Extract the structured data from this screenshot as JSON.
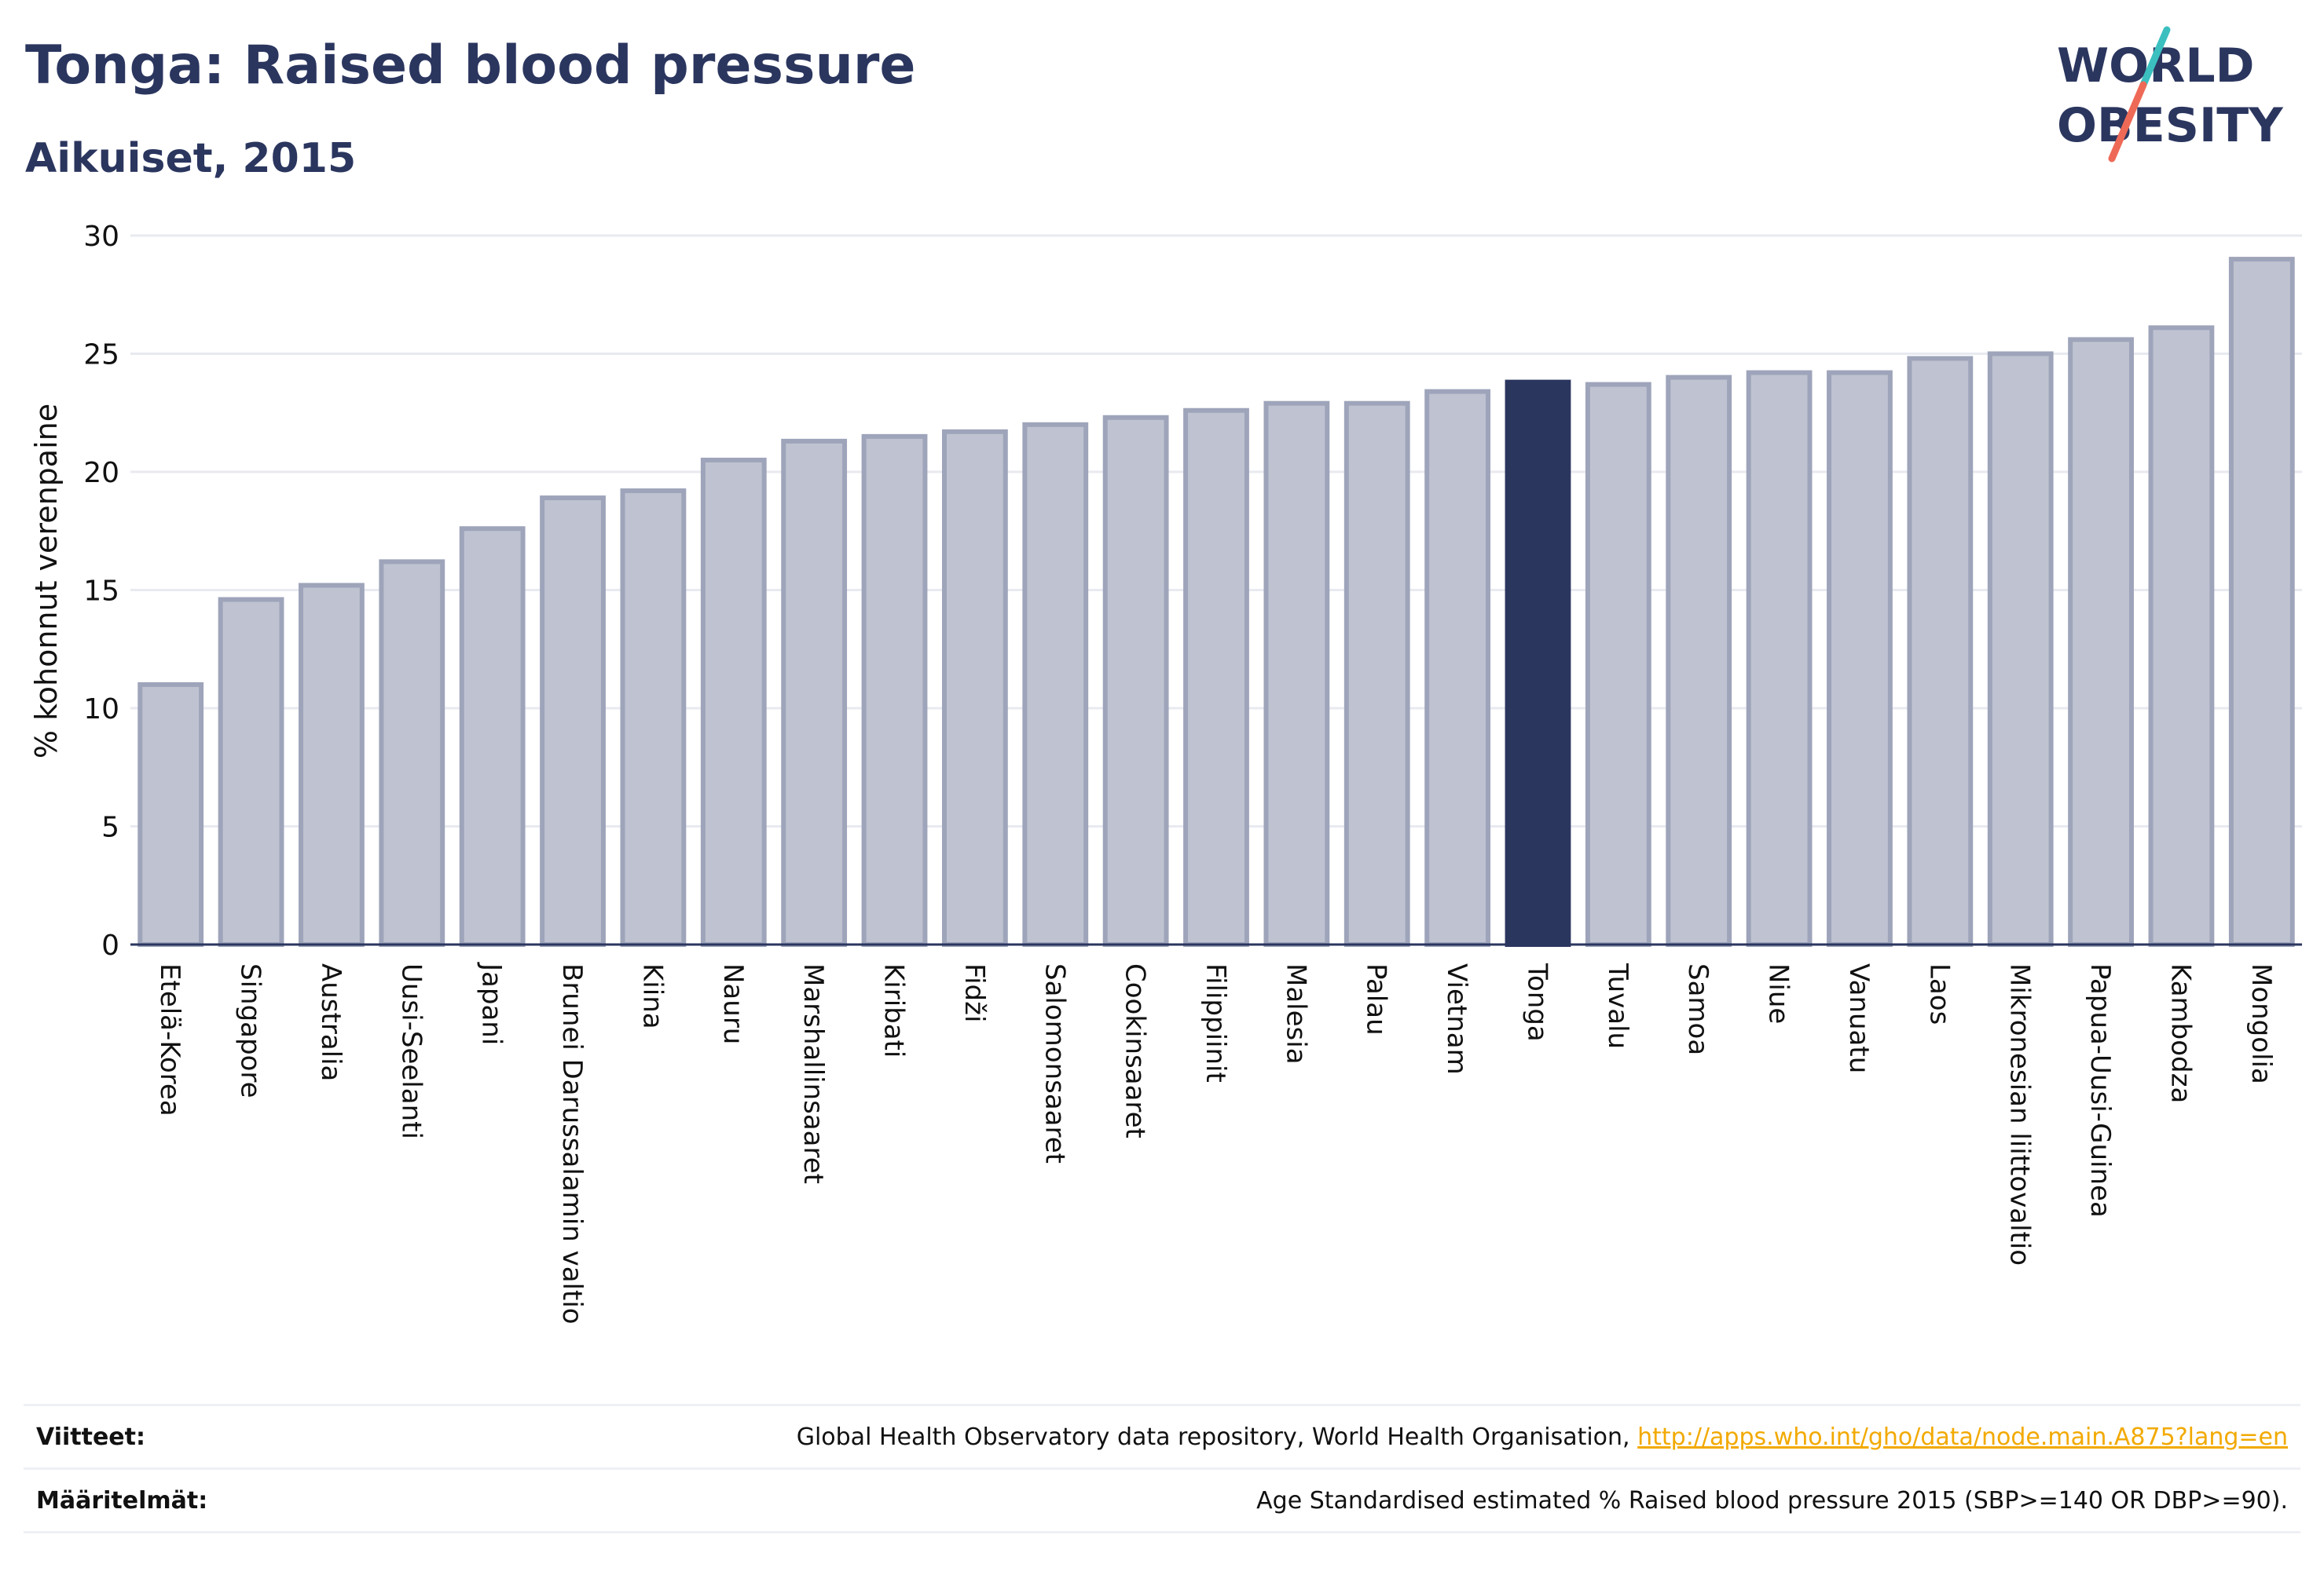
{
  "header": {
    "title": "Tonga: Raised blood pressure",
    "subtitle": "Aikuiset, 2015"
  },
  "logo": {
    "line1": "WORLD",
    "line2": "OBESITY"
  },
  "chart_data": {
    "type": "bar",
    "ylabel": "% kohonnut verenpaine",
    "ylim": [
      0,
      30
    ],
    "yticks": [
      0,
      5,
      10,
      15,
      20,
      25,
      30
    ],
    "grid": true,
    "categories": [
      "Etelä-Korea",
      "Singapore",
      "Australia",
      "Uusi-Seelanti",
      "Japani",
      "Brunei Darussalamin valtio",
      "Kiina",
      "Nauru",
      "Marshallinsaaret",
      "Kiribati",
      "Fidži",
      "Salomonsaaret",
      "Cookinsaaret",
      "Filippiinit",
      "Malesia",
      "Palau",
      "Vietnam",
      "Tonga",
      "Tuvalu",
      "Samoa",
      "Niue",
      "Vanuatu",
      "Laos",
      "Mikronesian liittovaltio",
      "Papua-Uusi-Guinea",
      "Kambodza",
      "Mongolia"
    ],
    "values": [
      11.0,
      14.6,
      15.2,
      16.2,
      17.6,
      18.9,
      19.2,
      20.5,
      21.3,
      21.5,
      21.7,
      22.0,
      22.3,
      22.6,
      22.9,
      22.9,
      23.4,
      23.8,
      23.7,
      24.0,
      24.2,
      24.2,
      24.8,
      25.0,
      25.6,
      26.1,
      29.0
    ],
    "highlight": "Tonga",
    "colors": {
      "bar": "#bfc3d1",
      "bar_edge": "#9ea4ba",
      "highlight": "#2b365f",
      "grid": "#e8eaf0",
      "axis": "#2b365f"
    }
  },
  "references": {
    "sources_label": "Viitteet:",
    "sources_text": "Global Health Observatory data repository, World Health Organisation,",
    "sources_link": "http://apps.who.int/gho/data/node.main.A875?lang=en",
    "definitions_label": "Määritelmät:",
    "definitions_text": "Age Standardised estimated % Raised blood pressure 2015 (SBP>=140 OR DBP>=90)."
  }
}
